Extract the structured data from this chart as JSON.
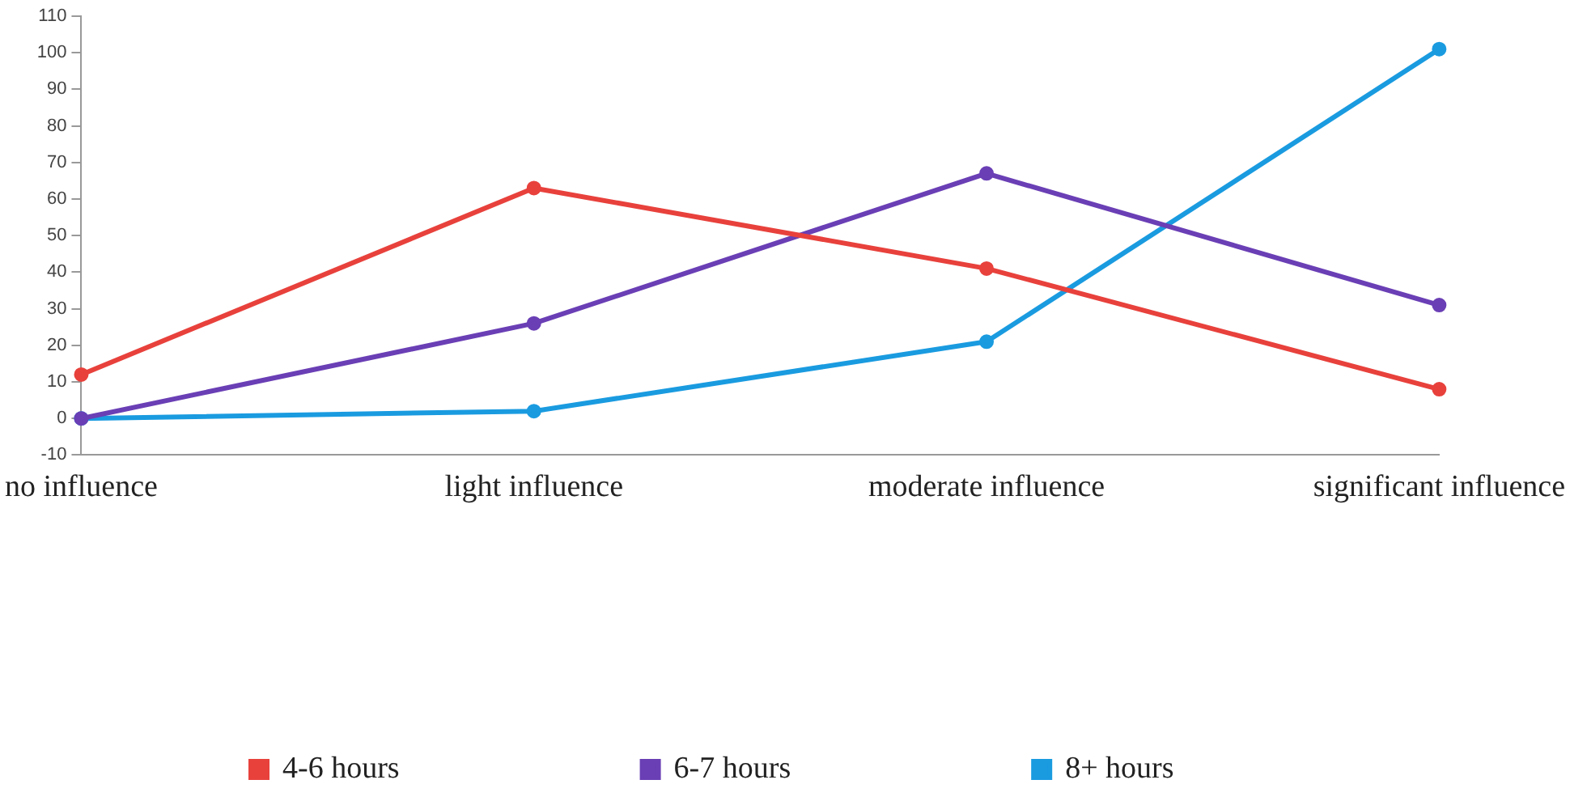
{
  "chart_data": {
    "type": "line",
    "categories": [
      "no influence",
      "light influence",
      "moderate influence",
      "significant influence"
    ],
    "series": [
      {
        "name": "4-6 hours",
        "color": "#e8413c",
        "values": [
          12,
          63,
          41,
          8
        ]
      },
      {
        "name": "6-7 hours",
        "color": "#6a3fb5",
        "values": [
          0,
          26,
          67,
          31
        ]
      },
      {
        "name": "8+ hours",
        "color": "#1a9be0",
        "values": [
          0,
          2,
          21,
          101
        ]
      }
    ],
    "ylim": [
      -10,
      110
    ],
    "yticks": [
      -10,
      0,
      10,
      20,
      30,
      40,
      50,
      60,
      70,
      80,
      90,
      100,
      110
    ],
    "grid": false,
    "legend": "bottom",
    "marker": "circle",
    "line_style": "solid"
  }
}
